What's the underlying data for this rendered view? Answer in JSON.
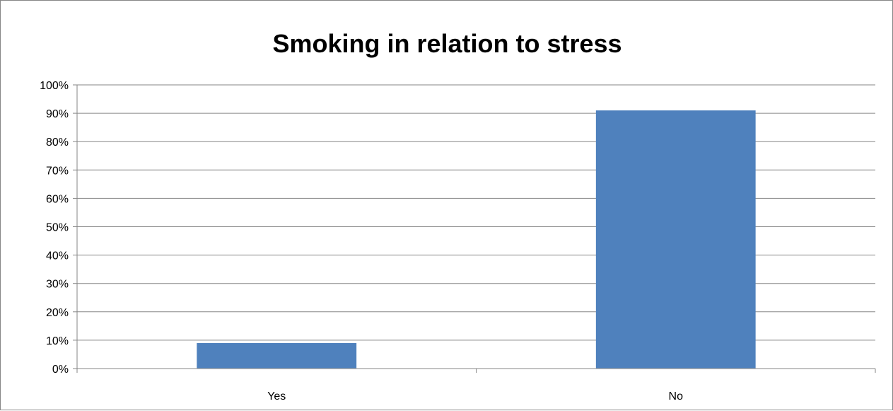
{
  "chart_data": {
    "type": "bar",
    "title": "Smoking in relation to stress",
    "categories": [
      "Yes",
      "No"
    ],
    "values": [
      0.09,
      0.91
    ],
    "ylim": [
      0,
      1
    ],
    "y_ticks": [
      "0%",
      "10%",
      "20%",
      "30%",
      "40%",
      "50%",
      "60%",
      "70%",
      "80%",
      "90%",
      "100%"
    ],
    "xlabel": "",
    "ylabel": "",
    "grid": true,
    "legend": "none",
    "bar_color": "#4F81BD"
  }
}
